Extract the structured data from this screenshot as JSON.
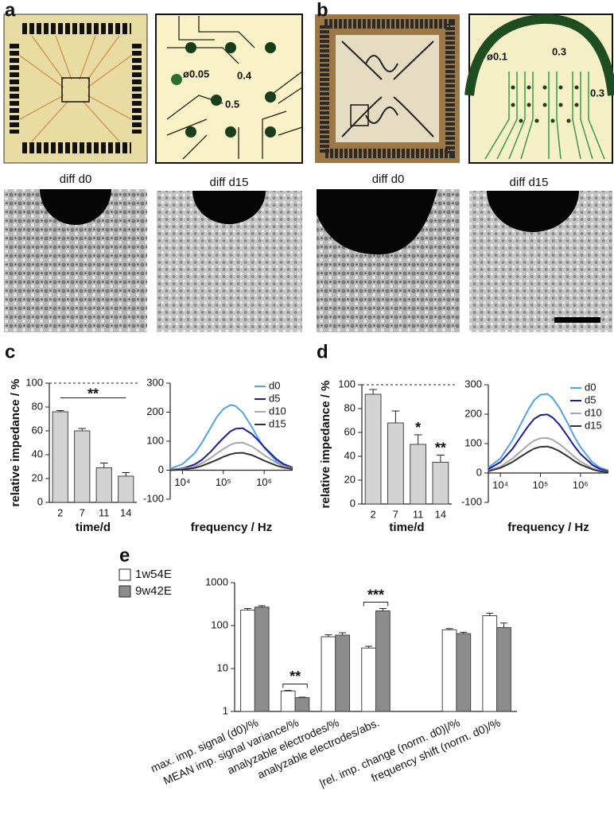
{
  "panel_labels": [
    "a",
    "b",
    "c",
    "d",
    "e"
  ],
  "diagram_labels": {
    "a": [
      "ø0.05",
      "0.4",
      "0.5"
    ],
    "b": [
      "ø0.1",
      "0.3",
      "0.3"
    ]
  },
  "image_labels": [
    "diff d0",
    "diff d15",
    "diff d0",
    "diff d15"
  ],
  "chart_data": [
    {
      "type": "bar",
      "ylabel": "relative impedance / %",
      "xlabel": "time/d",
      "categories": [
        "2",
        "7",
        "11",
        "14"
      ],
      "values": [
        76,
        60,
        29,
        22
      ],
      "errors": [
        1,
        2,
        4,
        3
      ],
      "color": "#d3d3d3",
      "ylim": [
        0,
        100
      ],
      "yticks": [
        0,
        20,
        40,
        60,
        80,
        100
      ],
      "reference_line": 100,
      "annotations": [
        {
          "text": "**",
          "from": "2",
          "to": "14"
        }
      ]
    },
    {
      "type": "line",
      "xlabel": "frequency / Hz",
      "log_scale_x": true,
      "x": [
        5000,
        10000,
        20000,
        30000,
        50000,
        70000,
        100000,
        150000,
        200000,
        300000,
        500000,
        700000,
        1000000,
        2000000,
        3000000,
        5000000
      ],
      "xlim": [
        5000,
        5000000
      ],
      "xticks": [
        {
          "value": 10000,
          "label": "10⁴"
        },
        {
          "value": 100000,
          "label": "10⁵"
        },
        {
          "value": 1000000,
          "label": "10⁶"
        }
      ],
      "ylim": [
        -100,
        300
      ],
      "yticks": [
        -100,
        0,
        100,
        200,
        300
      ],
      "legend": "upper right",
      "series": [
        {
          "name": "d0",
          "color": "#4fa3e8",
          "values": [
            5,
            21,
            59,
            95,
            149,
            184,
            211,
            225,
            221,
            198,
            149,
            112,
            78,
            30,
            15,
            5
          ]
        },
        {
          "name": "d5",
          "color": "#1c1c9e",
          "values": [
            1,
            6,
            20,
            36,
            65,
            88,
            111,
            134,
            143,
            145,
            125,
            104,
            80,
            38,
            21,
            9
          ]
        },
        {
          "name": "d10",
          "color": "#a8a8a8",
          "values": [
            1,
            4,
            13,
            24,
            43,
            58,
            73,
            88,
            94,
            95,
            82,
            68,
            52,
            25,
            14,
            6
          ]
        },
        {
          "name": "d15",
          "color": "#333333",
          "values": [
            0,
            2,
            8,
            15,
            27,
            36,
            46,
            55,
            59,
            60,
            52,
            43,
            33,
            16,
            9,
            4
          ]
        }
      ]
    },
    {
      "type": "bar",
      "ylabel": "relative impedance / %",
      "xlabel": "time/d",
      "categories": [
        "2",
        "7",
        "11",
        "14"
      ],
      "values": [
        92,
        68,
        50,
        35
      ],
      "errors": [
        4,
        10,
        8,
        6
      ],
      "color": "#d3d3d3",
      "ylim": [
        0,
        100
      ],
      "yticks": [
        0,
        20,
        40,
        60,
        80,
        100
      ],
      "reference_line": 100,
      "annotations": [
        {
          "text": "*",
          "from": "11"
        },
        {
          "text": "**",
          "from": "14"
        }
      ]
    },
    {
      "type": "line",
      "xlabel": "frequency / Hz",
      "log_scale_x": true,
      "x": [
        5000,
        10000,
        20000,
        30000,
        50000,
        70000,
        100000,
        150000,
        200000,
        300000,
        500000,
        700000,
        1000000,
        2000000,
        3000000,
        5000000
      ],
      "xlim": [
        5000,
        5000000
      ],
      "xticks": [
        {
          "value": 10000,
          "label": "10⁴"
        },
        {
          "value": 100000,
          "label": "10⁵"
        },
        {
          "value": 1000000,
          "label": "10⁶"
        }
      ],
      "ylim": [
        -100,
        300
      ],
      "yticks": [
        -100,
        0,
        100,
        200,
        300
      ],
      "legend": "upper right",
      "series": [
        {
          "name": "d0",
          "color": "#4fa3e8",
          "values": [
            18,
            50,
            111,
            158,
            216,
            248,
            266,
            269,
            255,
            221,
            164,
            124,
            88,
            36,
            19,
            8
          ]
        },
        {
          "name": "d5",
          "color": "#1c1c9e",
          "values": [
            13,
            37,
            82,
            117,
            160,
            184,
            197,
            199,
            189,
            164,
            121,
            92,
            65,
            27,
            14,
            6
          ]
        },
        {
          "name": "d10",
          "color": "#a8a8a8",
          "values": [
            8,
            22,
            49,
            70,
            96,
            110,
            118,
            119,
            113,
            98,
            73,
            55,
            39,
            16,
            8,
            4
          ]
        },
        {
          "name": "d15",
          "color": "#333333",
          "values": [
            6,
            17,
            37,
            53,
            72,
            83,
            89,
            90,
            85,
            74,
            55,
            41,
            29,
            12,
            6,
            3
          ]
        }
      ]
    },
    {
      "type": "bar",
      "log_scale": true,
      "legend": "upper left",
      "categories": [
        "max. imp. signal (d0)/%",
        "MEAN imp. signal variance/%",
        "analyzable electrodes/%",
        "analyzable electrodes/abs.",
        null,
        "|rel. imp. change (norm. d0)|/%",
        "frequency shift (norm. d0)/%"
      ],
      "ylim": [
        1,
        1000
      ],
      "yticks": [
        1,
        10,
        100,
        1000
      ],
      "series": [
        {
          "name": "1w54E",
          "color": "#ffffff",
          "values": [
            230,
            3,
            55,
            30,
            null,
            80,
            170
          ],
          "errors": [
            20,
            0.1,
            6,
            3,
            null,
            5,
            25
          ]
        },
        {
          "name": "9w42E",
          "color": "#8c8c8c",
          "values": [
            270,
            2.1,
            60,
            220,
            null,
            65,
            90
          ],
          "errors": [
            20,
            0.05,
            8,
            30,
            null,
            5,
            25
          ]
        }
      ],
      "annotations": [
        {
          "text": "**",
          "from": "MEAN imp. signal variance/%"
        },
        {
          "text": "***",
          "from": "analyzable electrodes/abs."
        }
      ]
    }
  ]
}
